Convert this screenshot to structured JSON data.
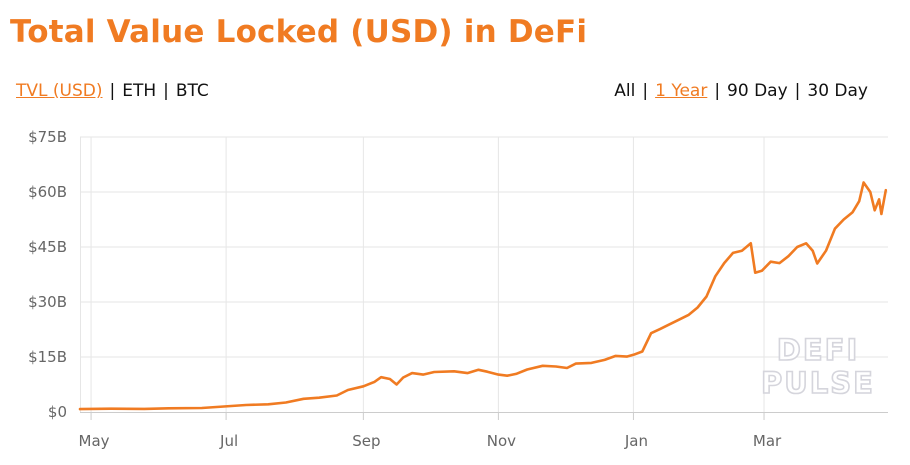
{
  "header": {
    "title": "Total Value Locked (USD) in DeFi"
  },
  "currency_toggle": {
    "items": [
      "TVL (USD)",
      "ETH",
      "BTC"
    ],
    "active": 0
  },
  "range_toggle": {
    "items": [
      "All",
      "1 Year",
      "90 Day",
      "30 Day"
    ],
    "active": 1
  },
  "watermark": {
    "line1": "DEFI",
    "line2": "PULSE"
  },
  "colors": {
    "accent": "#f07b22",
    "grid": "#e6e6e6",
    "tick_text": "#666666",
    "watermark_outline": "#d5d5dc"
  },
  "chart_data": {
    "type": "line",
    "title": "",
    "xlabel": "",
    "ylabel": "",
    "x_ticks": [
      "May",
      "Jul",
      "Sep",
      "Nov",
      "Jan",
      "Mar"
    ],
    "x_tick_dates": [
      "2020-05-01",
      "2020-07-01",
      "2020-09-01",
      "2020-11-01",
      "2021-01-01",
      "2021-03-01"
    ],
    "xlim": [
      "2020-04-26",
      "2021-04-26"
    ],
    "y_ticks": [
      "$0",
      "$15B",
      "$30B",
      "$45B",
      "$60B",
      "$75B"
    ],
    "ylim": [
      0,
      75
    ],
    "y_unit": "billion USD",
    "grid": true,
    "series": [
      {
        "color": "#f07b22",
        "points": [
          [
            "2020-04-26",
            0.8
          ],
          [
            "2020-05-10",
            0.9
          ],
          [
            "2020-05-25",
            0.85
          ],
          [
            "2020-06-05",
            1.0
          ],
          [
            "2020-06-20",
            1.1
          ],
          [
            "2020-06-30",
            1.5
          ],
          [
            "2020-07-10",
            1.9
          ],
          [
            "2020-07-20",
            2.1
          ],
          [
            "2020-07-28",
            2.6
          ],
          [
            "2020-08-05",
            3.6
          ],
          [
            "2020-08-12",
            3.9
          ],
          [
            "2020-08-20",
            4.5
          ],
          [
            "2020-08-25",
            6.0
          ],
          [
            "2020-09-01",
            7.0
          ],
          [
            "2020-09-06",
            8.2
          ],
          [
            "2020-09-09",
            9.5
          ],
          [
            "2020-09-13",
            9.0
          ],
          [
            "2020-09-16",
            7.5
          ],
          [
            "2020-09-19",
            9.4
          ],
          [
            "2020-09-23",
            10.6
          ],
          [
            "2020-09-28",
            10.2
          ],
          [
            "2020-10-03",
            10.9
          ],
          [
            "2020-10-12",
            11.1
          ],
          [
            "2020-10-18",
            10.6
          ],
          [
            "2020-10-23",
            11.5
          ],
          [
            "2020-10-27",
            11.0
          ],
          [
            "2020-11-01",
            10.2
          ],
          [
            "2020-11-05",
            9.9
          ],
          [
            "2020-11-09",
            10.4
          ],
          [
            "2020-11-14",
            11.6
          ],
          [
            "2020-11-21",
            12.6
          ],
          [
            "2020-11-27",
            12.4
          ],
          [
            "2020-12-02",
            12.0
          ],
          [
            "2020-12-06",
            13.2
          ],
          [
            "2020-12-13",
            13.4
          ],
          [
            "2020-12-19",
            14.2
          ],
          [
            "2020-12-24",
            15.3
          ],
          [
            "2020-12-29",
            15.1
          ],
          [
            "2021-01-01",
            15.6
          ],
          [
            "2021-01-05",
            16.5
          ],
          [
            "2021-01-09",
            21.5
          ],
          [
            "2021-01-13",
            22.6
          ],
          [
            "2021-01-17",
            23.8
          ],
          [
            "2021-01-21",
            25.0
          ],
          [
            "2021-01-26",
            26.5
          ],
          [
            "2021-01-30",
            28.5
          ],
          [
            "2021-02-03",
            31.5
          ],
          [
            "2021-02-07",
            37.0
          ],
          [
            "2021-02-11",
            40.6
          ],
          [
            "2021-02-15",
            43.4
          ],
          [
            "2021-02-19",
            44.0
          ],
          [
            "2021-02-23",
            46.0
          ],
          [
            "2021-02-25",
            38.0
          ],
          [
            "2021-02-28",
            38.5
          ],
          [
            "2021-03-04",
            41.0
          ],
          [
            "2021-03-08",
            40.6
          ],
          [
            "2021-03-12",
            42.5
          ],
          [
            "2021-03-16",
            45.0
          ],
          [
            "2021-03-20",
            46.0
          ],
          [
            "2021-03-23",
            44.0
          ],
          [
            "2021-03-25",
            40.5
          ],
          [
            "2021-03-29",
            44.0
          ],
          [
            "2021-04-02",
            50.0
          ],
          [
            "2021-04-06",
            52.5
          ],
          [
            "2021-04-10",
            54.5
          ],
          [
            "2021-04-13",
            57.5
          ],
          [
            "2021-04-15",
            62.6
          ],
          [
            "2021-04-18",
            60.0
          ],
          [
            "2021-04-20",
            55.0
          ],
          [
            "2021-04-22",
            58.0
          ],
          [
            "2021-04-23",
            54.0
          ],
          [
            "2021-04-25",
            60.5
          ]
        ]
      }
    ]
  }
}
